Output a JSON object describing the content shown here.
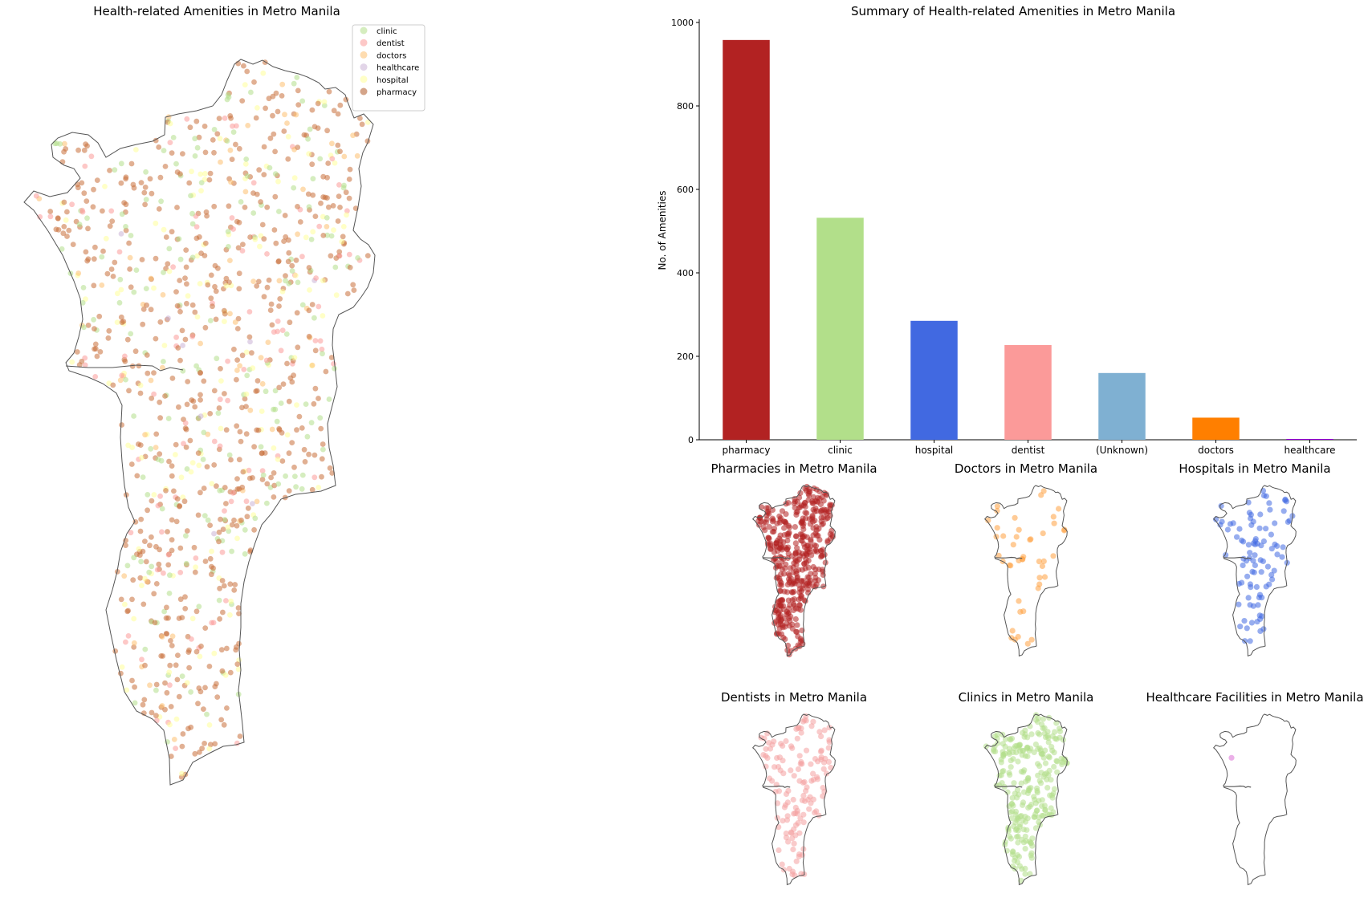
{
  "main_map": {
    "title": "Health-related Amenities in Metro Manila",
    "legend": [
      {
        "label": "clinic",
        "color": "#b2df8a"
      },
      {
        "label": "dentist",
        "color": "#fb9a99"
      },
      {
        "label": "doctors",
        "color": "#fdbf6f"
      },
      {
        "label": "healthcare",
        "color": "#cab2d6"
      },
      {
        "label": "hospital",
        "color": "#ffff99"
      },
      {
        "label": "pharmacy",
        "color": "#b15928"
      }
    ],
    "scatter_color": "#c8703a"
  },
  "chart_data": {
    "type": "bar",
    "title": "Summary of Health-related Amenities in Metro Manila",
    "xlabel": "",
    "ylabel": "No. of Amenities",
    "ylim": [
      0,
      1000
    ],
    "yticks": [
      0,
      200,
      400,
      600,
      800,
      1000
    ],
    "categories": [
      "pharmacy",
      "clinic",
      "hospital",
      "dentist",
      "(Unknown)",
      "doctors",
      "healthcare"
    ],
    "values": [
      958,
      532,
      285,
      227,
      160,
      53,
      2
    ],
    "colors": [
      "#b22222",
      "#b2df8a",
      "#4169e1",
      "#fb9a99",
      "#7fb0d2",
      "#ff7f00",
      "#9400d3"
    ]
  },
  "small_maps": [
    {
      "title": "Pharmacies in Metro Manila",
      "color": "#b22222",
      "count": 420
    },
    {
      "title": "Doctors in Metro Manila",
      "color": "#ffa040",
      "count": 45
    },
    {
      "title": "Hospitals in Metro Manila",
      "color": "#4169e1",
      "count": 95
    },
    {
      "title": "Dentists in Metro Manila",
      "color": "#f4a0a0",
      "count": 140
    },
    {
      "title": "Clinics in Metro Manila",
      "color": "#b2df8a",
      "count": 260
    },
    {
      "title": "Healthcare Facilities in Metro Manila",
      "color": "#da70d6",
      "count": 1
    }
  ]
}
